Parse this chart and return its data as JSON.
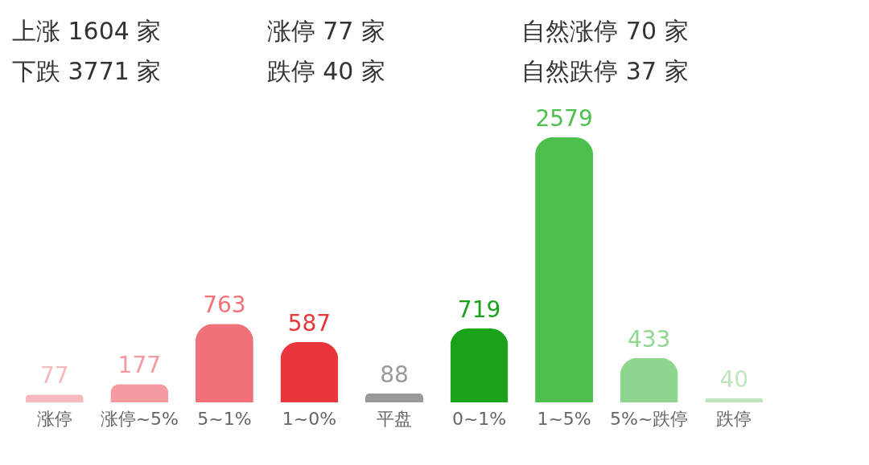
{
  "chart_data": {
    "type": "bar",
    "annotations": [
      "上涨  1604 家",
      "涨停  77 家",
      "自然涨停  70 家",
      "下跌  3771 家",
      "跌停  40 家",
      "自然跌停  37 家"
    ],
    "categories": [
      "涨停",
      "涨停~5%",
      "5~1%",
      "1~0%",
      "平盘",
      "0~1%",
      "1~5%",
      "5%~跌停",
      "跌停"
    ],
    "values": [
      77,
      177,
      763,
      587,
      88,
      719,
      2579,
      433,
      40
    ],
    "colors": [
      "#f7b9bd",
      "#f59a9f",
      "#f07177",
      "#e8363b",
      "#999999",
      "#1aa31a",
      "#4cbf4c",
      "#8fd68f",
      "#bfe6bf"
    ],
    "data_labels": true
  }
}
